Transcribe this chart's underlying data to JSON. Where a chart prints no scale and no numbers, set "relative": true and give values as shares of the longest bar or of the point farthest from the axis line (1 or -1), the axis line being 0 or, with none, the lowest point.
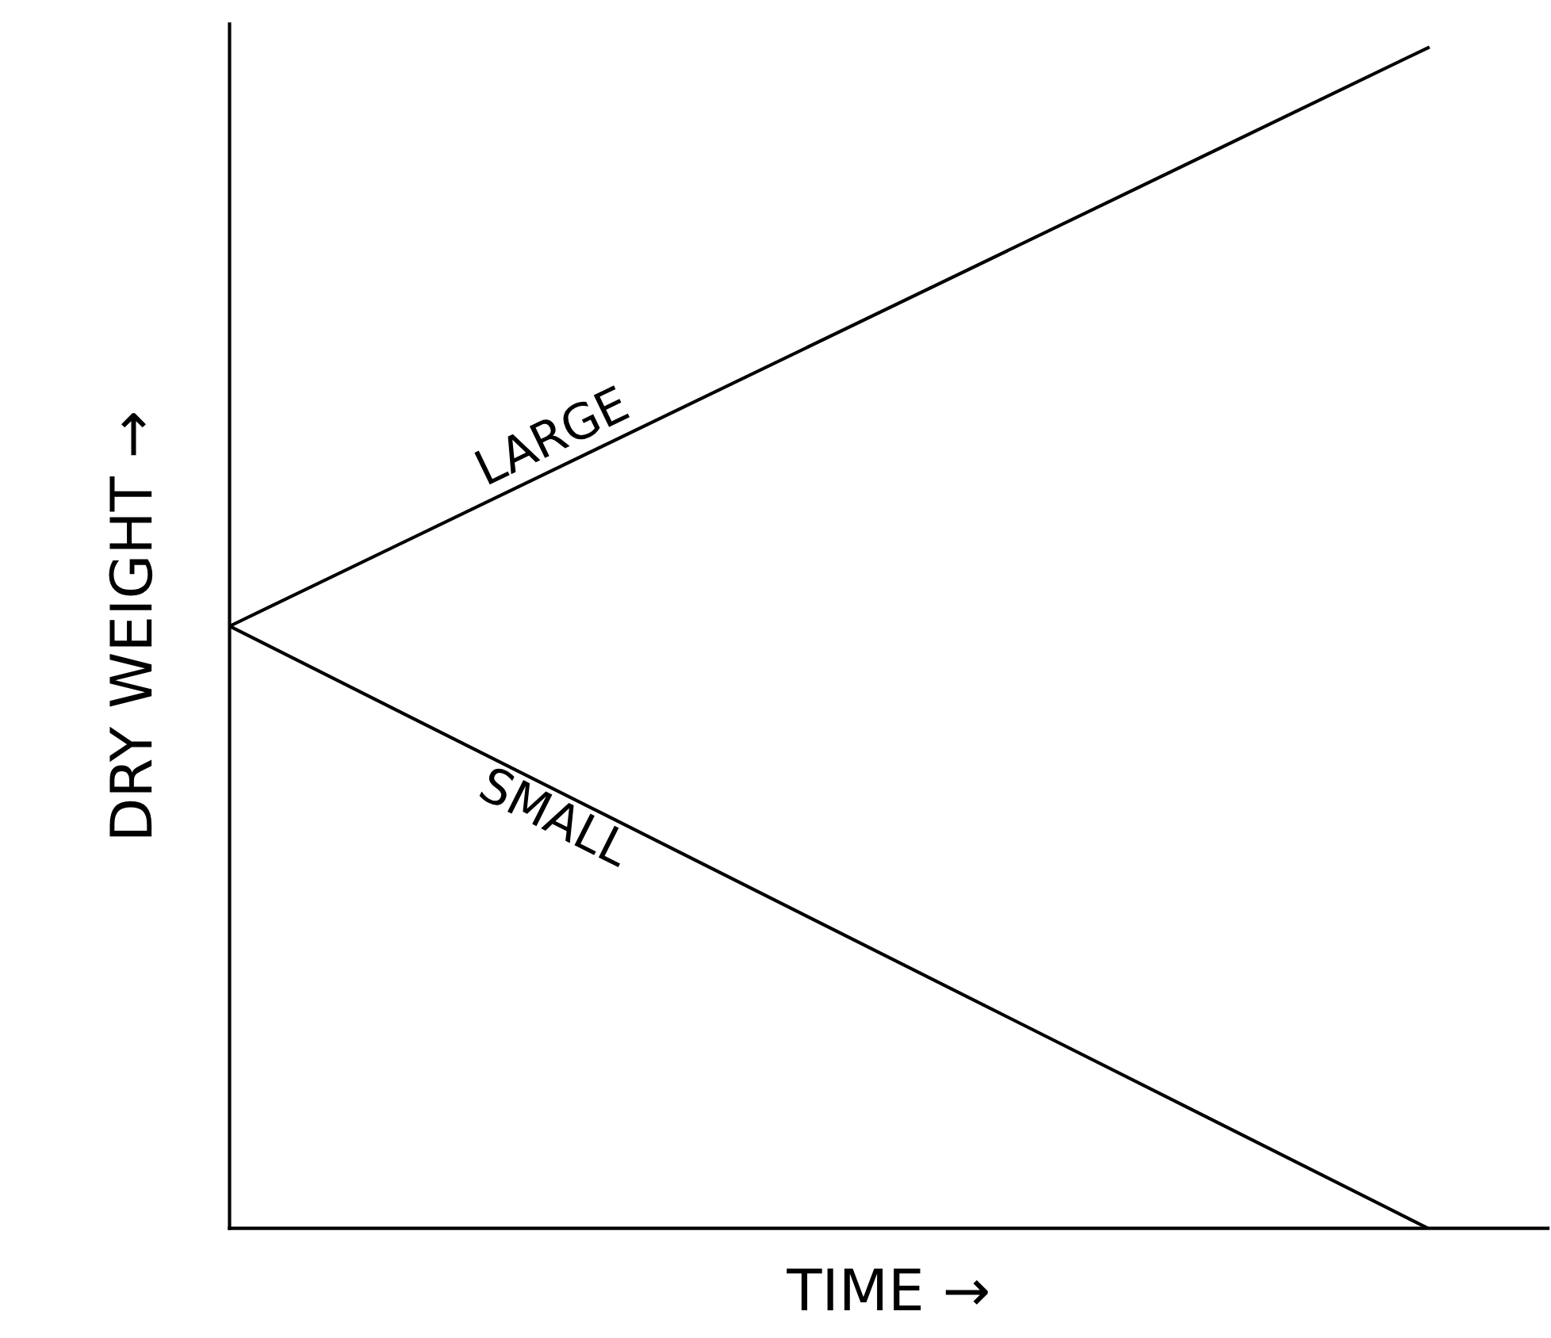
{
  "chart_data": {
    "type": "line",
    "relative": true,
    "xlabel": "TIME →",
    "ylabel": "DRY WEIGHT →",
    "categories": [
      null,
      null
    ],
    "series": [
      {
        "name": "LARGE",
        "color": "#000000",
        "values": [
          0.51,
          1
        ]
      },
      {
        "name": "SMALL",
        "color": "#000000",
        "values": [
          0.51,
          0
        ]
      }
    ],
    "legend": false,
    "grid": false,
    "marker": "none",
    "line_style": "solid"
  }
}
